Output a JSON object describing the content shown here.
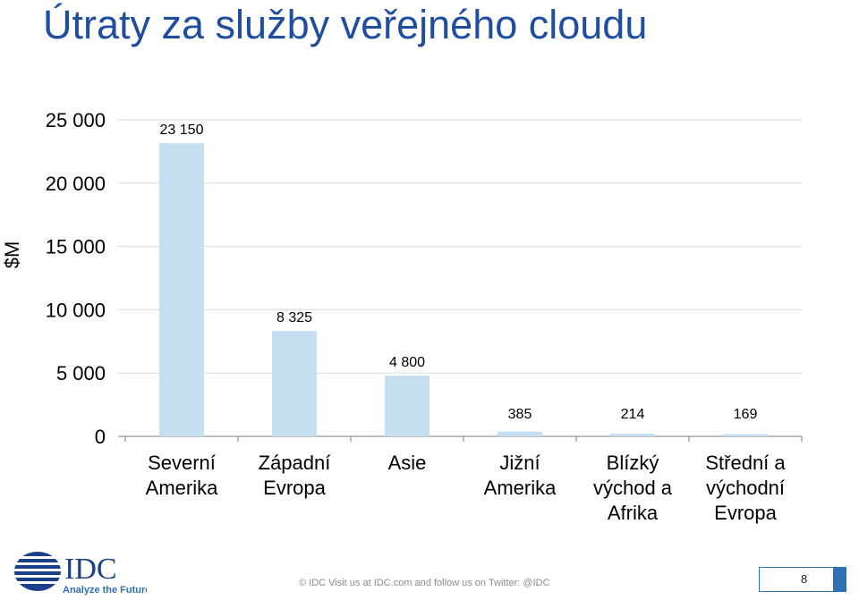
{
  "page": {
    "title": "Útraty za služby veřejného cloudu",
    "copyright": "© IDC  Visit us at IDC.com and follow us on Twitter: @IDC",
    "page_number": "8"
  },
  "logo": {
    "name": "IDC",
    "tagline": "Analyze the Future"
  },
  "chart_data": {
    "type": "bar",
    "title": "",
    "ylabel": "$M",
    "xlabel": "",
    "ylim": [
      0,
      25000
    ],
    "y_ticks": [
      {
        "value": 25000,
        "label": "25 000"
      },
      {
        "value": 20000,
        "label": "20 000"
      },
      {
        "value": 15000,
        "label": "15 000"
      },
      {
        "value": 10000,
        "label": "10 000"
      },
      {
        "value": 5000,
        "label": "5 000"
      },
      {
        "value": 0,
        "label": "0"
      }
    ],
    "grid": true,
    "categories": [
      [
        "Severní",
        "Amerika"
      ],
      [
        "Západní",
        "Evropa"
      ],
      [
        "Asie"
      ],
      [
        "Jižní",
        "Amerika"
      ],
      [
        "Blízký",
        "východ a",
        "Afrika"
      ],
      [
        "Střední a",
        "východní",
        "Evropa"
      ]
    ],
    "values": [
      23150,
      8325,
      4800,
      385,
      214,
      169
    ],
    "data_labels": [
      "23 150",
      "8 325",
      "4 800",
      "385",
      "214",
      "169"
    ],
    "colors": {
      "bar": "#c5dff1",
      "grid": "#d9d9d9",
      "axis": "#7f7f7f",
      "title": "#1f4e9e",
      "text": "#000000"
    }
  }
}
